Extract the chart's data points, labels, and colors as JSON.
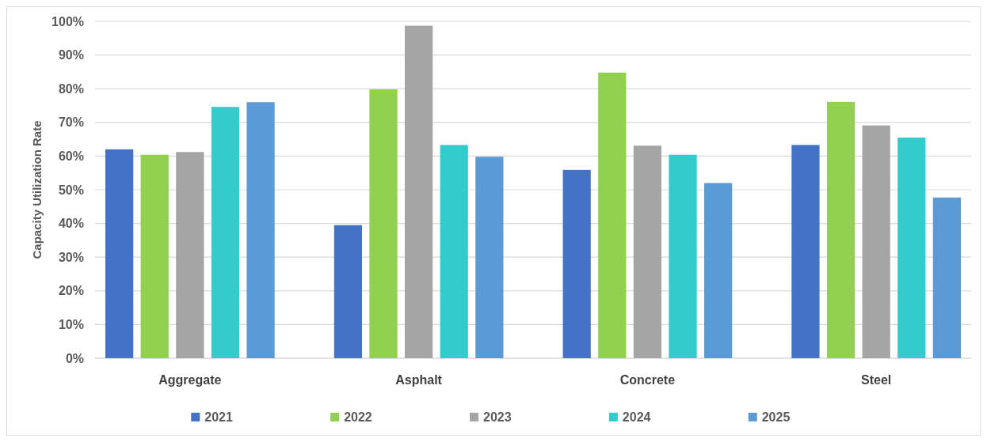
{
  "chart_data": {
    "type": "bar",
    "ylabel": "Capacity Utilization Rate",
    "categories": [
      "Aggregate",
      "Asphalt",
      "Concrete",
      "Steel"
    ],
    "series": [
      {
        "name": "2021",
        "color": "#4472c4",
        "values": [
          62.0,
          39.5,
          55.9,
          63.3
        ]
      },
      {
        "name": "2022",
        "color": "#92d050",
        "values": [
          60.4,
          79.8,
          84.8,
          76.1
        ]
      },
      {
        "name": "2023",
        "color": "#a5a5a5",
        "values": [
          61.2,
          98.7,
          63.1,
          69.1
        ]
      },
      {
        "name": "2024",
        "color": "#33cccc",
        "values": [
          74.6,
          63.3,
          60.4,
          65.5
        ]
      },
      {
        "name": "2025",
        "color": "#5b9bd5",
        "values": [
          76.0,
          59.8,
          52.0,
          47.7
        ]
      }
    ],
    "ylim": [
      0,
      100
    ],
    "yticks": [
      {
        "value": 0,
        "label": "0%"
      },
      {
        "value": 10,
        "label": "10%"
      },
      {
        "value": 20,
        "label": "20%"
      },
      {
        "value": 30,
        "label": "30%"
      },
      {
        "value": 40,
        "label": "40%"
      },
      {
        "value": 50,
        "label": "50%"
      },
      {
        "value": 60,
        "label": "60%"
      },
      {
        "value": 70,
        "label": "70%"
      },
      {
        "value": 80,
        "label": "80%"
      },
      {
        "value": 90,
        "label": "90%"
      },
      {
        "value": 100,
        "label": "100%"
      }
    ],
    "grid": "y",
    "legend": "bottom"
  }
}
